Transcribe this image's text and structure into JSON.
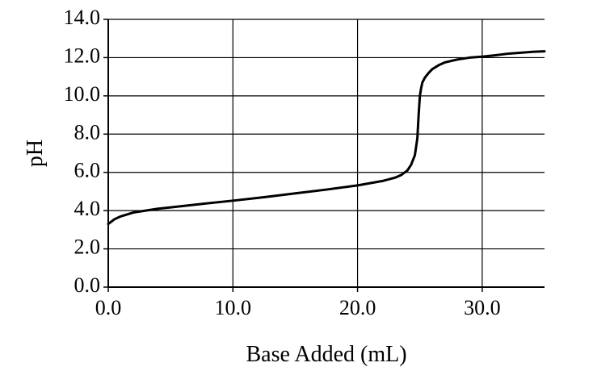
{
  "chart_data": {
    "type": "line",
    "title": "",
    "xlabel": "Base Added (mL)",
    "ylabel": "pH",
    "xlim": [
      0,
      35
    ],
    "ylim": [
      0,
      14
    ],
    "grid": true,
    "x_ticks": [
      0,
      10,
      20,
      30
    ],
    "x_tick_labels": [
      "0.0",
      "10.0",
      "20.0",
      "30.0"
    ],
    "y_ticks": [
      0,
      2,
      4,
      6,
      8,
      10,
      12,
      14
    ],
    "y_tick_labels": [
      "0.0",
      "2.0",
      "4.0",
      "6.0",
      "8.0",
      "10.0",
      "12.0",
      "14.0"
    ],
    "colors": {
      "line": "#000000",
      "grid": "#000000"
    },
    "series": [
      {
        "x": [
          0.0,
          0.5,
          1.0,
          2.0,
          3.0,
          4.0,
          5.0,
          7.5,
          10.0,
          12.5,
          15.0,
          17.5,
          20.0,
          22.0,
          23.0,
          23.5,
          24.0,
          24.3,
          24.6,
          24.8,
          24.9,
          25.0,
          25.1,
          25.2,
          25.4,
          25.7,
          26.0,
          26.5,
          27.0,
          28.0,
          29.0,
          30.0,
          31.0,
          32.0,
          33.0,
          34.0,
          35.0
        ],
        "y": [
          3.3,
          3.55,
          3.7,
          3.9,
          4.0,
          4.1,
          4.17,
          4.35,
          4.52,
          4.7,
          4.9,
          5.1,
          5.32,
          5.55,
          5.72,
          5.86,
          6.1,
          6.4,
          6.9,
          7.8,
          9.0,
          10.0,
          10.4,
          10.7,
          10.95,
          11.2,
          11.4,
          11.6,
          11.75,
          11.9,
          12.0,
          12.05,
          12.12,
          12.2,
          12.25,
          12.3,
          12.33
        ]
      }
    ]
  }
}
